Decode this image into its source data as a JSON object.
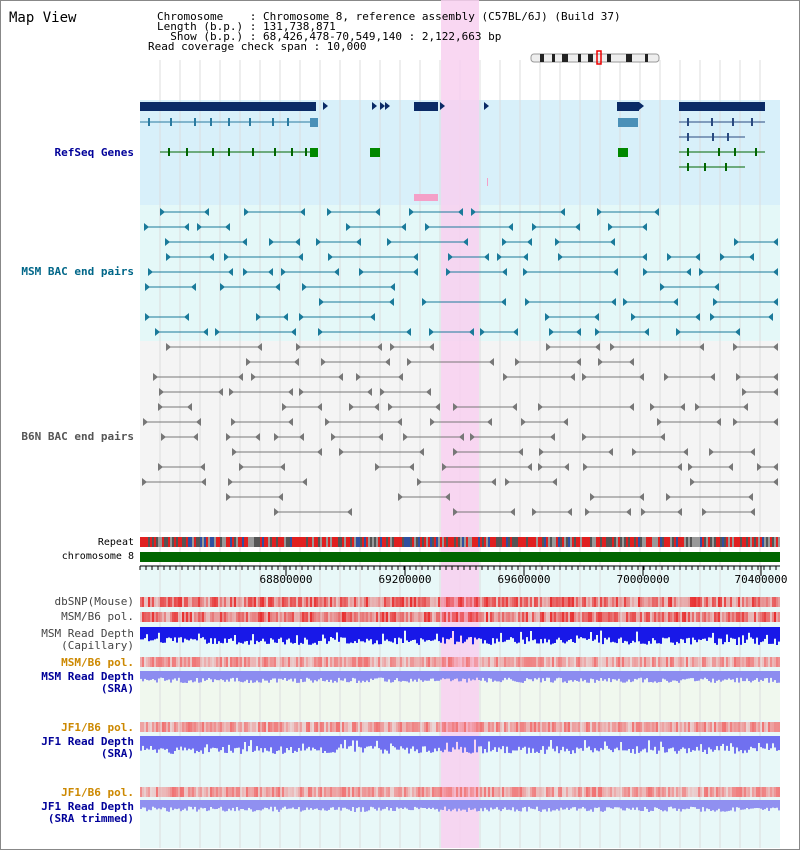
{
  "view_title": "Map View",
  "header": {
    "chromosome_line": "Chromosome    : Chromosome 8, reference assembly (C57BL/6J) (Build 37)",
    "length_line": "Length (b.p.) : 131,738,871",
    "show_line": "  Show (b.p.) : 68,426,478-70,549,140 : 2,122,663 bp",
    "coverage_line": "Read coverage check span : 10,000"
  },
  "tracks": {
    "refseq": "RefSeq Genes",
    "msm_bac": "MSM BAC end pairs",
    "b6n_bac": "B6N BAC end pairs",
    "repeat": "Repeat",
    "chromosome": "chromosome 8",
    "dbsnp": "dbSNP(Mouse)",
    "msm_b6_pol_1": "MSM/B6 pol.",
    "msm_depth_cap": "MSM Read Depth\n(Capillary)",
    "msm_b6_pol_2": "MSM/B6 pol.",
    "msm_depth_sra": "MSM Read Depth\n(SRA)",
    "jf1_b6_pol_1": "JF1/B6 pol.",
    "jf1_depth_sra": "JF1 Read Depth\n(SRA)",
    "jf1_b6_pol_2": "JF1/B6 pol.",
    "jf1_depth_trim": "JF1 Read Depth\n(SRA trimmed)"
  },
  "ruler_ticks": [
    "68800000",
    "69200000",
    "69600000",
    "70000000",
    "70400000"
  ],
  "colors": {
    "refseq_label": "#000099",
    "msm_label": "#006688",
    "b6n_label": "#555555",
    "pol_orange": "#cc8800",
    "depth_blue": "#000099",
    "highlight": "#f8d0f0",
    "chromosome_green": "#006600"
  }
}
